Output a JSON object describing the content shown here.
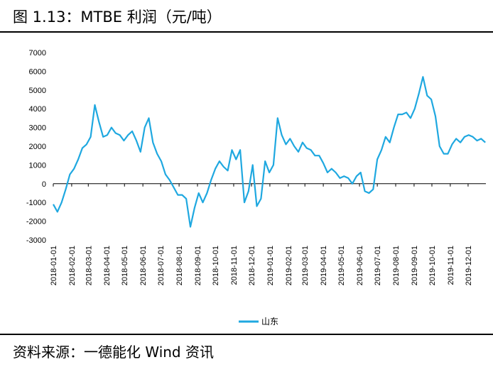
{
  "header": {
    "title": "图 1.13：MTBE 利润（元/吨）"
  },
  "footer": {
    "source": "资料来源：一德能化  Wind 资讯"
  },
  "chart_data": {
    "type": "line",
    "title": "",
    "xlabel": "",
    "ylabel": "",
    "ylim": [
      -3000,
      7000
    ],
    "yticks": [
      -3000,
      -2000,
      -1000,
      0,
      1000,
      2000,
      3000,
      4000,
      5000,
      6000,
      7000
    ],
    "xticks": [
      "2018-01-01",
      "2018-02-01",
      "2018-03-01",
      "2018-04-01",
      "2018-05-01",
      "2018-06-01",
      "2018-07-01",
      "2018-08-01",
      "2018-09-01",
      "2018-10-01",
      "2018-11-01",
      "2018-12-01",
      "2019-01-01",
      "2019-02-01",
      "2019-03-01",
      "2019-04-01",
      "2019-05-01",
      "2019-06-01",
      "2019-07-01",
      "2019-08-01",
      "2019-09-01",
      "2019-10-01",
      "2019-11-01",
      "2019-12-01"
    ],
    "legend_position": "bottom",
    "grid": false,
    "color": "#1fa8e0",
    "series": [
      {
        "name": "山东",
        "x": [
          "2018-01-01",
          "2018-01-08",
          "2018-01-15",
          "2018-01-22",
          "2018-01-29",
          "2018-02-05",
          "2018-02-12",
          "2018-02-19",
          "2018-02-26",
          "2018-03-05",
          "2018-03-12",
          "2018-03-19",
          "2018-03-26",
          "2018-04-02",
          "2018-04-09",
          "2018-04-16",
          "2018-04-23",
          "2018-04-30",
          "2018-05-07",
          "2018-05-14",
          "2018-05-21",
          "2018-05-28",
          "2018-06-04",
          "2018-06-11",
          "2018-06-18",
          "2018-06-25",
          "2018-07-02",
          "2018-07-09",
          "2018-07-16",
          "2018-07-23",
          "2018-07-30",
          "2018-08-06",
          "2018-08-13",
          "2018-08-20",
          "2018-08-27",
          "2018-09-03",
          "2018-09-10",
          "2018-09-17",
          "2018-09-24",
          "2018-10-01",
          "2018-10-08",
          "2018-10-15",
          "2018-10-22",
          "2018-10-29",
          "2018-11-05",
          "2018-11-12",
          "2018-11-19",
          "2018-11-26",
          "2018-12-03",
          "2018-12-10",
          "2018-12-17",
          "2018-12-24",
          "2018-12-31",
          "2019-01-07",
          "2019-01-14",
          "2019-01-21",
          "2019-01-28",
          "2019-02-04",
          "2019-02-11",
          "2019-02-18",
          "2019-02-25",
          "2019-03-04",
          "2019-03-11",
          "2019-03-18",
          "2019-03-25",
          "2019-04-01",
          "2019-04-08",
          "2019-04-15",
          "2019-04-22",
          "2019-04-29",
          "2019-05-06",
          "2019-05-13",
          "2019-05-20",
          "2019-05-27",
          "2019-06-03",
          "2019-06-10",
          "2019-06-17",
          "2019-06-24",
          "2019-07-01",
          "2019-07-08",
          "2019-07-15",
          "2019-07-22",
          "2019-07-29",
          "2019-08-05",
          "2019-08-12",
          "2019-08-19",
          "2019-08-26",
          "2019-09-02",
          "2019-09-09",
          "2019-09-16",
          "2019-09-23",
          "2019-09-30",
          "2019-10-07",
          "2019-10-14",
          "2019-10-21",
          "2019-10-28",
          "2019-11-04",
          "2019-11-11",
          "2019-11-18",
          "2019-11-25",
          "2019-12-02",
          "2019-12-09",
          "2019-12-16",
          "2019-12-23",
          "2019-12-30"
        ],
        "values": [
          -1100,
          -1500,
          -1000,
          -300,
          500,
          800,
          1300,
          1900,
          2100,
          2500,
          4200,
          3300,
          2500,
          2600,
          3000,
          2700,
          2600,
          2300,
          2600,
          2800,
          2300,
          1700,
          3000,
          3500,
          2200,
          1600,
          1200,
          500,
          200,
          -200,
          -600,
          -600,
          -800,
          -2300,
          -1300,
          -500,
          -1000,
          -500,
          200,
          800,
          1200,
          900,
          700,
          1800,
          1300,
          1800,
          -1000,
          -400,
          1000,
          -1200,
          -800,
          1200,
          600,
          1000,
          3500,
          2600,
          2100,
          2400,
          2000,
          1700,
          2200,
          1900,
          1800,
          1500,
          1500,
          1100,
          600,
          800,
          600,
          300,
          400,
          300,
          0,
          400,
          600,
          -400,
          -500,
          -300,
          1300,
          1800,
          2500,
          2200,
          3000,
          3700,
          3700,
          3800,
          3500,
          4000,
          4800,
          5700,
          4700,
          4500,
          3600,
          2000,
          1600,
          1600,
          2100,
          2400,
          2200,
          2500,
          2600,
          2500,
          2300,
          2400,
          2200
        ]
      }
    ]
  }
}
